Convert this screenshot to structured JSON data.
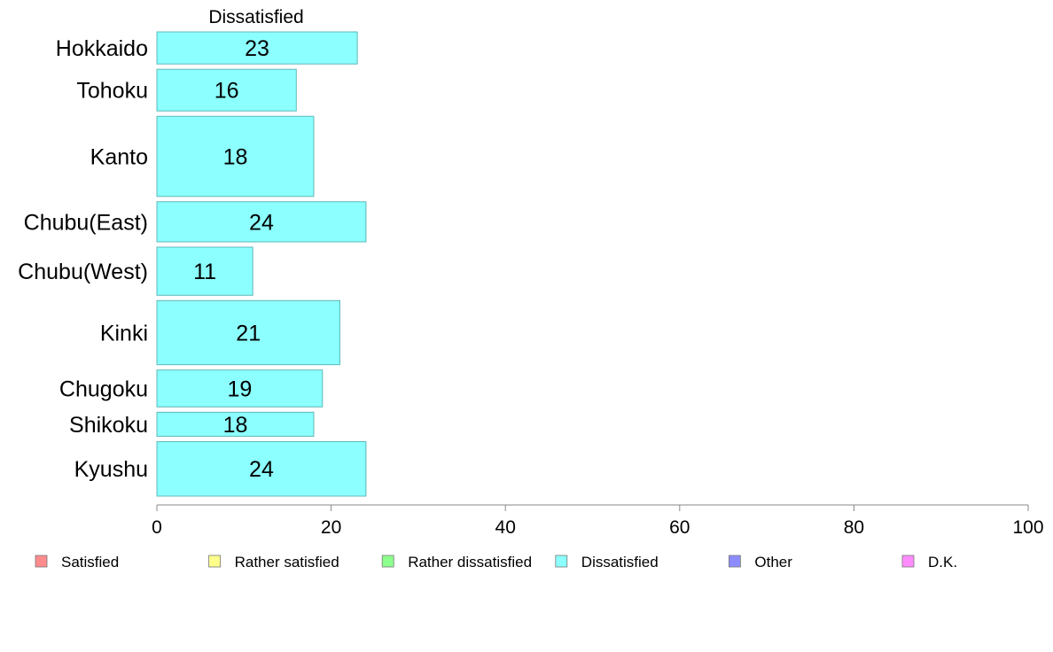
{
  "chart_data": {
    "type": "bar",
    "orientation": "horizontal",
    "title": "Dissatisfied",
    "categories": [
      "Hokkaido",
      "Tohoku",
      "Kanto",
      "Chubu(East)",
      "Chubu(West)",
      "Kinki",
      "Chugoku",
      "Shikoku",
      "Kyushu"
    ],
    "category_weights": [
      1.0,
      1.3,
      2.5,
      1.25,
      1.5,
      2.0,
      1.15,
      0.75,
      1.7
    ],
    "series": [
      {
        "name": "Dissatisfied",
        "values": [
          23,
          16,
          18,
          24,
          11,
          21,
          19,
          18,
          24
        ]
      }
    ],
    "xlim": [
      0,
      100
    ],
    "xticks": [
      0,
      20,
      40,
      60,
      80,
      100
    ],
    "grid": false,
    "legend_position": "bottom",
    "legend": [
      {
        "label": "Satisfied",
        "color": "#ff8c8c"
      },
      {
        "label": "Rather satisfied",
        "color": "#ffff8c"
      },
      {
        "label": "Rather dissatisfied",
        "color": "#8cff8c"
      },
      {
        "label": "Dissatisfied",
        "color": "#8cffff"
      },
      {
        "label": "Other",
        "color": "#8c8cff"
      },
      {
        "label": "D.K.",
        "color": "#ff8cff"
      }
    ],
    "bar_color": "#8cffff",
    "bar_stroke": "#5fb8b8",
    "axis_color": "#888888"
  }
}
